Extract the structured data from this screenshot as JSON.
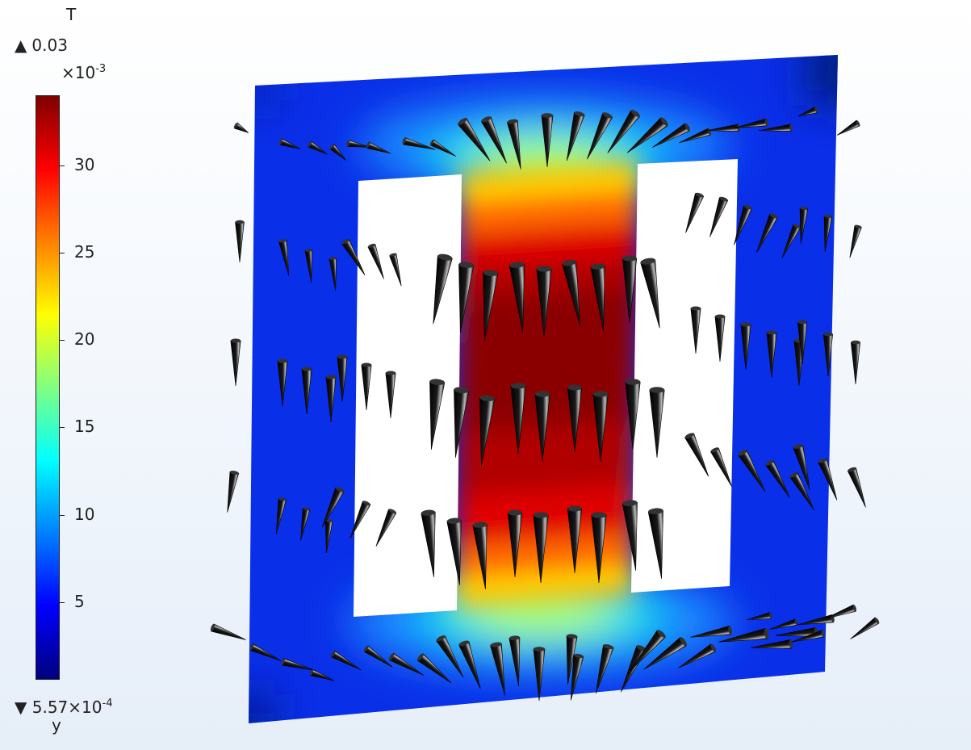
{
  "legend": {
    "unit": "T",
    "max_label": "0.03",
    "max_symbol": "▲",
    "exponent_base": "×10",
    "exponent_power": "-3",
    "min_symbol": "▼",
    "min_value": "5.57×10",
    "min_power": "-4",
    "ticks": [
      {
        "label": "30",
        "value": 30
      },
      {
        "label": "25",
        "value": 25
      },
      {
        "label": "20",
        "value": 20
      },
      {
        "label": "15",
        "value": 15
      },
      {
        "label": "10",
        "value": 10
      },
      {
        "label": "5",
        "value": 5
      }
    ],
    "colormap": [
      "#00007f",
      "#0000ff",
      "#0080ff",
      "#00ffff",
      "#80ff80",
      "#ffff00",
      "#ff8000",
      "#ff0000",
      "#7f0000"
    ]
  },
  "axis_indicator": {
    "label": "y"
  },
  "chart_data": {
    "type": "heatmap",
    "quantity_unit": "T",
    "scale_multiplier": "×10^-3",
    "range_min": 0.557,
    "range_max": 34,
    "colorbar_ticks": [
      5,
      10,
      15,
      20,
      25,
      30
    ],
    "max_display": "0.03",
    "min_display": "5.57×10^-4",
    "arrows": true
  }
}
